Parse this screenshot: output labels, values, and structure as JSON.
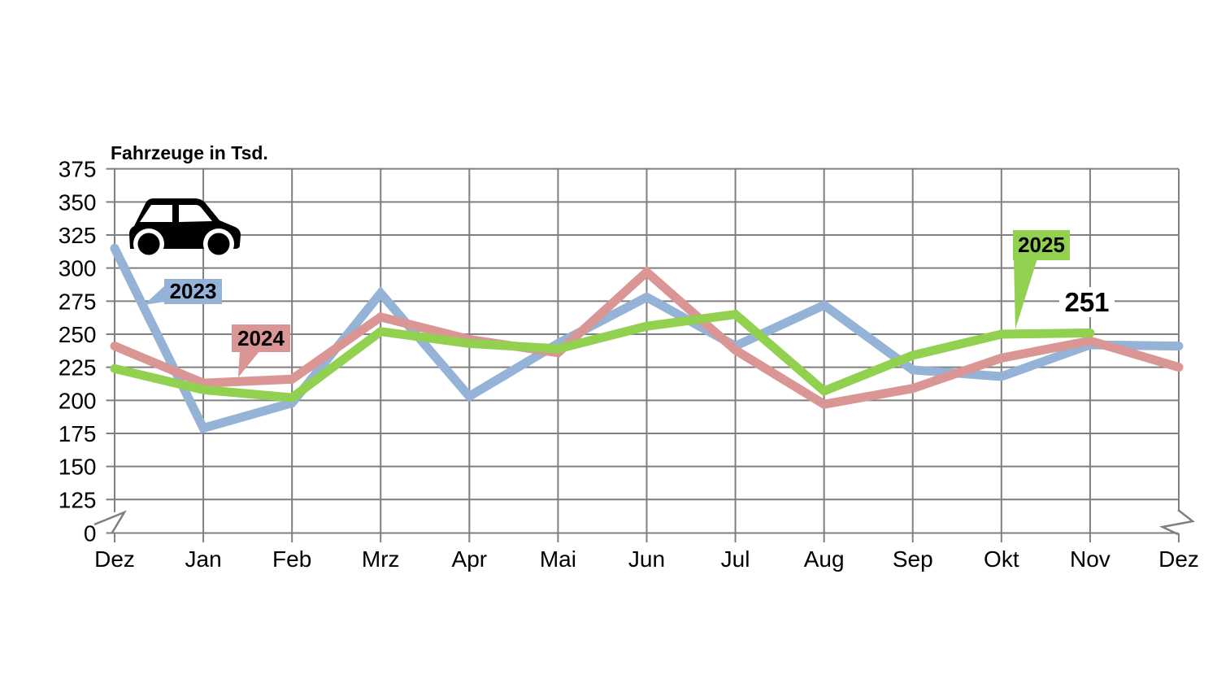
{
  "chart_data": {
    "type": "line",
    "title": "Fahrzeuge in Tsd.",
    "x_categories": [
      "Dez",
      "Jan",
      "Feb",
      "Mrz",
      "Apr",
      "Mai",
      "Jun",
      "Jul",
      "Aug",
      "Sep",
      "Okt",
      "Nov",
      "Dez"
    ],
    "y_ticks": [
      375,
      350,
      325,
      300,
      275,
      250,
      225,
      200,
      175,
      150,
      125,
      0
    ],
    "y_axis_break_between": [
      0,
      125
    ],
    "grid": true,
    "grid_color": "#7F7F7F",
    "text_color": "#000000",
    "background_color": "#FFFFFF",
    "icon": "car",
    "series": [
      {
        "name": "2023",
        "color": "#95B3D7",
        "values": [
          315,
          179,
          198,
          281,
          203,
          243,
          278,
          241,
          272,
          223,
          218,
          242,
          241
        ]
      },
      {
        "name": "2024",
        "color": "#D99694",
        "values": [
          241,
          213,
          216,
          263,
          246,
          236,
          297,
          238,
          197,
          209,
          232,
          245,
          225
        ]
      },
      {
        "name": "2025",
        "color": "#92D050",
        "values": [
          224,
          208,
          202,
          252,
          243,
          239,
          256,
          265,
          207,
          234,
          250,
          251
        ]
      }
    ],
    "annotations": {
      "endpoint": {
        "text": "251",
        "series": "2025",
        "month": "Nov",
        "value": 251
      }
    }
  }
}
